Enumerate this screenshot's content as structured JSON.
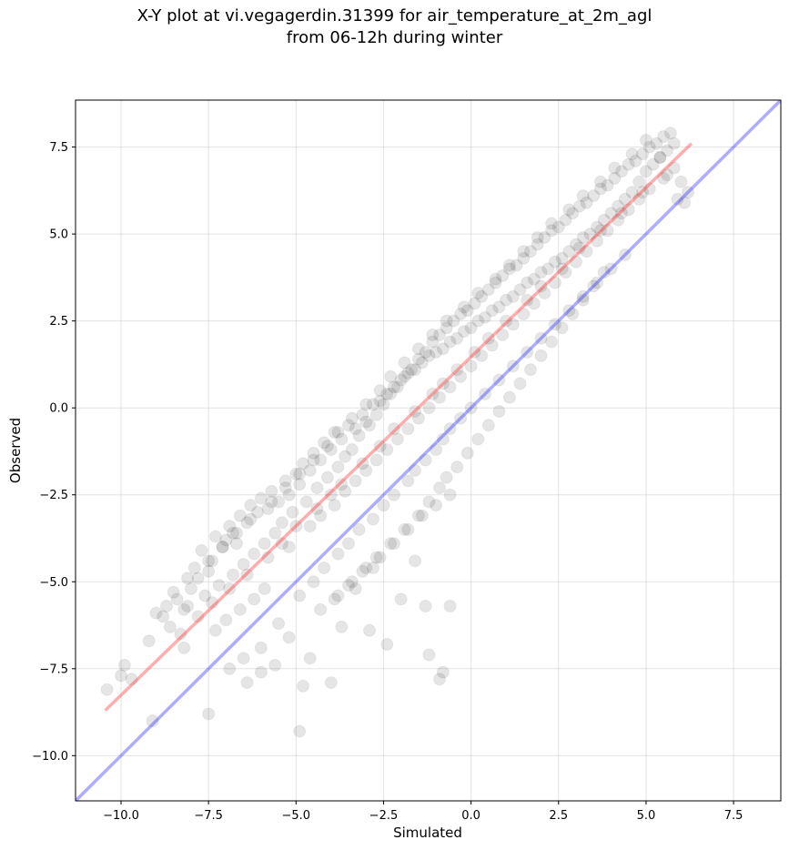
{
  "chart_data": {
    "type": "scatter",
    "title_lines": [
      "X-Y plot at vi.vegagerdin.31399 for air_temperature_at_2m_agl",
      "from 06-12h during winter"
    ],
    "xlabel": "Simulated",
    "ylabel": "Observed",
    "xlim": [
      -11.3,
      8.85
    ],
    "ylim": [
      -11.3,
      8.85
    ],
    "xticks": [
      -10.0,
      -7.5,
      -5.0,
      -2.5,
      0.0,
      2.5,
      5.0,
      7.5
    ],
    "yticks": [
      -10.0,
      -7.5,
      -5.0,
      -2.5,
      0.0,
      2.5,
      5.0,
      7.5
    ],
    "xtick_labels": [
      "−10.0",
      "−7.5",
      "−5.0",
      "−2.5",
      "0.0",
      "2.5",
      "5.0",
      "7.5"
    ],
    "ytick_labels": [
      "−10.0",
      "−7.5",
      "−5.0",
      "−2.5",
      "0.0",
      "2.5",
      "5.0",
      "7.5"
    ],
    "grid": true,
    "regression_line": {
      "x": [
        -10.45,
        6.3
      ],
      "y": [
        -8.7,
        7.6
      ],
      "color": "#ff3333"
    },
    "identity_line": {
      "x": [
        -11.3,
        8.85
      ],
      "y": [
        -11.3,
        8.85
      ],
      "color": "#3333ff"
    },
    "point_color": "#000000",
    "series": [
      {
        "x": [
          -10.4,
          -10.0,
          -9.9,
          -9.7,
          -9.2,
          -8.8,
          -8.6,
          -8.4,
          -8.2,
          -8.0,
          -7.9,
          -7.8,
          -7.7,
          -7.5,
          -7.4,
          -7.3,
          -7.1,
          -7.0,
          -6.9,
          -6.8,
          -6.7,
          -6.6,
          -6.4,
          -6.3,
          -6.1,
          -6.0,
          -5.8,
          -5.7,
          -5.5,
          -5.3,
          -5.2,
          -5.0,
          -4.9,
          -4.8,
          -4.6,
          -4.5,
          -4.3,
          -4.2,
          -4.0,
          -3.9,
          -3.7,
          -3.5,
          -3.3,
          -3.1,
          -3.0,
          -2.8,
          -2.6,
          -2.4,
          -2.2,
          -2.0,
          -1.8,
          -1.6,
          -1.4,
          -1.2,
          -1.0,
          -0.8,
          -0.6,
          -0.4,
          -0.2,
          0.0,
          0.2,
          0.4,
          0.6,
          0.8,
          1.0,
          1.2,
          1.4,
          1.6,
          1.8,
          2.0,
          2.2,
          2.4,
          2.6,
          2.8,
          3.0,
          3.2,
          3.4,
          3.6,
          3.8,
          4.0,
          4.2,
          4.4,
          4.6,
          4.8,
          5.0,
          5.2,
          5.4,
          5.6,
          5.8,
          6.0,
          6.2,
          -8.1,
          -7.6,
          -7.2,
          -6.8,
          -6.5,
          -6.2,
          -5.9,
          -5.6,
          -5.4,
          -5.1,
          -4.7,
          -4.4,
          -4.1,
          -3.8,
          -3.6,
          -3.4,
          -3.2,
          -2.9,
          -2.7,
          -2.5,
          -2.3,
          -2.1,
          -1.9,
          -1.7,
          -1.5,
          -1.3,
          -1.1,
          -0.9,
          -0.7,
          -0.5,
          -0.3,
          -0.1,
          0.1,
          0.3,
          0.5,
          0.7,
          0.9,
          1.1,
          1.3,
          1.5,
          1.7,
          1.9,
          2.1,
          2.3,
          2.5,
          2.7,
          2.9,
          3.1,
          3.3,
          3.5,
          3.7,
          3.9,
          4.1,
          4.3,
          4.5,
          4.7,
          4.9,
          5.1,
          5.3,
          5.5,
          5.7,
          5.9,
          -7.3,
          -7.0,
          -6.6,
          -6.2,
          -5.9,
          -5.2,
          -4.6,
          -4.3,
          -3.9,
          -3.6,
          -3.3,
          -3.0,
          -2.7,
          -2.4,
          -2.1,
          -1.8,
          -1.5,
          -1.2,
          -0.9,
          -0.6,
          -0.3,
          0.0,
          0.3,
          0.6,
          0.9,
          1.2,
          1.5,
          1.8,
          2.1,
          2.4,
          2.7,
          3.0,
          3.3,
          3.6,
          3.9,
          4.2,
          4.5,
          4.8,
          5.1,
          5.5,
          5.8,
          -8.3,
          -7.8,
          -7.4,
          -6.9,
          -6.4,
          -5.8,
          -5.4,
          -5.0,
          -4.4,
          -4.0,
          -3.7,
          -3.1,
          -2.6,
          -2.2,
          -1.6,
          -1.1,
          -0.8,
          -0.4,
          0.1,
          0.5,
          1.0,
          1.6,
          2.0,
          2.6,
          3.1,
          3.7,
          4.3,
          4.9,
          5.6,
          6.1,
          -9.0,
          -8.7,
          -8.5,
          -8.1,
          -7.5,
          -7.1,
          -6.7,
          -6.3,
          -5.7,
          -5.3,
          -4.9,
          -4.5,
          -4.1,
          -3.8,
          -3.4,
          -3.0,
          -2.6,
          -2.3,
          -1.9,
          -1.5,
          -1.1,
          -0.7,
          -0.2,
          0.2,
          0.7,
          1.1,
          1.5,
          1.9,
          2.3,
          2.8,
          3.2,
          3.7,
          4.1,
          4.6,
          5.0,
          5.4,
          -6.5,
          -6.0,
          -5.5,
          -4.9,
          -4.5,
          -4.2,
          -3.8,
          -3.5,
          -3.2,
          -2.8,
          -2.5,
          -2.2,
          -1.8,
          -1.6,
          -1.3,
          -1.0,
          -0.8,
          -0.6,
          -0.3,
          0.0,
          0.4,
          0.8,
          1.2,
          1.6,
          2.0,
          2.4,
          2.8,
          3.2,
          3.6,
          4.0,
          4.4,
          -3.9,
          -3.5,
          -3.1,
          -2.7,
          -2.3,
          -1.9,
          -1.5,
          -1.2,
          -0.9,
          -0.7,
          -0.4,
          -0.1,
          0.2,
          0.5,
          0.8,
          1.1,
          1.4,
          1.7,
          2.0,
          2.3,
          2.6,
          2.9,
          3.2,
          3.5,
          3.8,
          -4.3,
          -3.8,
          -3.4,
          -3.0,
          -2.6,
          -2.2,
          -1.8,
          -1.4,
          -1.0,
          -0.6,
          -5.2,
          -4.9,
          -4.8,
          -4.0,
          -3.7,
          -2.9,
          -2.4,
          -1.2,
          -0.9,
          -0.8,
          -1.3,
          -0.6,
          -2.0,
          -1.6,
          -3.3,
          -2.8,
          -4.6,
          -5.6,
          -6.0,
          -6.9,
          -7.5,
          -6.4,
          -8.2,
          -9.1
        ],
        "y": [
          -8.1,
          -7.7,
          -7.4,
          -7.8,
          -6.7,
          -6.0,
          -6.3,
          -5.5,
          -5.8,
          -5.2,
          -4.6,
          -4.9,
          -4.1,
          -4.7,
          -4.4,
          -3.7,
          -4.0,
          -3.8,
          -3.4,
          -3.6,
          -3.9,
          -3.1,
          -3.3,
          -2.8,
          -3.0,
          -2.6,
          -2.9,
          -2.4,
          -2.7,
          -2.1,
          -2.5,
          -1.9,
          -2.2,
          -1.6,
          -1.8,
          -1.3,
          -1.5,
          -1.0,
          -1.2,
          -0.7,
          -0.9,
          -0.5,
          -0.6,
          -0.2,
          -0.4,
          0.1,
          0.2,
          0.4,
          0.6,
          0.8,
          1.0,
          1.1,
          1.3,
          1.5,
          1.6,
          1.7,
          1.9,
          2.0,
          2.2,
          2.3,
          2.5,
          2.6,
          2.8,
          2.9,
          3.1,
          3.2,
          3.4,
          3.6,
          3.7,
          3.9,
          4.0,
          4.2,
          4.3,
          4.5,
          4.7,
          4.9,
          5.0,
          5.2,
          5.4,
          5.6,
          5.8,
          6.0,
          6.2,
          6.5,
          6.8,
          7.0,
          7.2,
          7.4,
          7.6,
          6.5,
          6.2,
          -5.7,
          -5.4,
          -5.1,
          -4.8,
          -4.5,
          -4.2,
          -3.9,
          -3.6,
          -3.3,
          -3.0,
          -2.7,
          -2.3,
          -2.0,
          -1.7,
          -1.4,
          -1.2,
          -0.8,
          -0.5,
          -0.2,
          0.1,
          0.4,
          0.6,
          0.9,
          1.1,
          1.4,
          1.6,
          1.9,
          2.1,
          2.3,
          2.5,
          2.7,
          2.8,
          3.0,
          3.2,
          3.4,
          3.6,
          3.8,
          4.0,
          4.1,
          4.3,
          4.5,
          4.7,
          4.9,
          5.1,
          5.2,
          5.4,
          5.6,
          5.8,
          5.9,
          6.1,
          6.3,
          6.4,
          6.6,
          6.8,
          7.0,
          7.1,
          7.3,
          7.5,
          7.6,
          7.8,
          7.9,
          6.0,
          -6.4,
          -6.1,
          -5.8,
          -5.5,
          -5.2,
          -4.0,
          -3.4,
          -3.1,
          -2.8,
          -2.4,
          -2.1,
          -1.8,
          -1.5,
          -1.2,
          -0.9,
          -0.6,
          -0.3,
          0.0,
          0.3,
          0.6,
          0.9,
          1.2,
          1.5,
          1.8,
          2.1,
          2.4,
          2.7,
          3.0,
          3.3,
          3.6,
          3.9,
          4.2,
          4.5,
          4.8,
          5.1,
          5.4,
          5.7,
          6.0,
          6.3,
          6.6,
          6.9,
          -6.5,
          -6.0,
          -5.6,
          -5.2,
          -4.8,
          -4.3,
          -3.9,
          -3.4,
          -2.9,
          -2.5,
          -2.2,
          -1.6,
          -1.1,
          -0.6,
          -0.1,
          0.4,
          0.7,
          1.1,
          1.6,
          2.0,
          2.5,
          3.1,
          3.5,
          4.0,
          4.6,
          5.1,
          5.6,
          6.2,
          6.7,
          5.9,
          -5.9,
          -5.7,
          -5.3,
          -4.9,
          -4.4,
          -4.0,
          -3.6,
          -3.2,
          -2.7,
          -2.3,
          -1.9,
          -1.5,
          -1.1,
          -0.7,
          -0.3,
          0.1,
          0.5,
          0.9,
          1.3,
          1.7,
          2.1,
          2.5,
          2.9,
          3.3,
          3.7,
          4.1,
          4.5,
          4.9,
          5.3,
          5.7,
          6.1,
          6.5,
          6.9,
          7.3,
          7.7,
          7.2,
          -7.2,
          -6.9,
          -6.2,
          -5.4,
          -5.0,
          -4.6,
          -4.2,
          -3.9,
          -3.5,
          -3.2,
          -2.8,
          -2.5,
          -2.1,
          -1.8,
          -1.5,
          -1.2,
          -0.9,
          -0.6,
          -0.3,
          0.0,
          0.4,
          0.8,
          1.2,
          1.6,
          2.0,
          2.4,
          2.8,
          3.2,
          3.6,
          4.0,
          4.4,
          -5.5,
          -5.1,
          -4.7,
          -4.3,
          -3.9,
          -3.5,
          -3.1,
          -2.7,
          -2.3,
          -2.0,
          -1.7,
          -1.3,
          -0.9,
          -0.5,
          -0.1,
          0.3,
          0.7,
          1.1,
          1.5,
          1.9,
          2.3,
          2.7,
          3.1,
          3.5,
          3.9,
          -5.8,
          -5.4,
          -5.0,
          -4.6,
          -4.3,
          -3.9,
          -3.5,
          -3.1,
          -2.8,
          -2.5,
          -6.6,
          -9.3,
          -8.0,
          -7.9,
          -6.3,
          -6.4,
          -6.8,
          -7.1,
          -7.8,
          -7.6,
          -5.7,
          -5.7,
          -5.5,
          -4.4,
          -5.2,
          -4.6,
          -7.2,
          -7.4,
          -7.6,
          -7.5,
          -8.8,
          -7.9,
          -6.9,
          -9.0
        ]
      }
    ]
  }
}
